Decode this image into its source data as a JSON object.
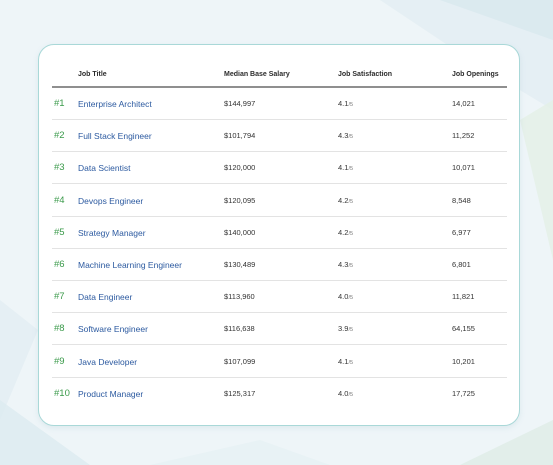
{
  "table": {
    "headers": {
      "job_title": "Job Title",
      "salary": "Median Base Salary",
      "satisfaction": "Job Satisfaction",
      "openings": "Job Openings"
    },
    "rows": [
      {
        "rank": "#1",
        "title": "Enterprise Architect",
        "salary": "$144,997",
        "score": "4.1",
        "scale": "/5",
        "openings": "14,021"
      },
      {
        "rank": "#2",
        "title": "Full Stack Engineer",
        "salary": "$101,794",
        "score": "4.3",
        "scale": "/5",
        "openings": "11,252"
      },
      {
        "rank": "#3",
        "title": "Data Scientist",
        "salary": "$120,000",
        "score": "4.1",
        "scale": "/5",
        "openings": "10,071"
      },
      {
        "rank": "#4",
        "title": "Devops Engineer",
        "salary": "$120,095",
        "score": "4.2",
        "scale": "/5",
        "openings": "8,548"
      },
      {
        "rank": "#5",
        "title": "Strategy Manager",
        "salary": "$140,000",
        "score": "4.2",
        "scale": "/5",
        "openings": "6,977"
      },
      {
        "rank": "#6",
        "title": "Machine Learning Engineer",
        "salary": "$130,489",
        "score": "4.3",
        "scale": "/5",
        "openings": "6,801"
      },
      {
        "rank": "#7",
        "title": "Data Engineer",
        "salary": "$113,960",
        "score": "4.0",
        "scale": "/5",
        "openings": "11,821"
      },
      {
        "rank": "#8",
        "title": "Software Engineer",
        "salary": "$116,638",
        "score": "3.9",
        "scale": "/5",
        "openings": "64,155"
      },
      {
        "rank": "#9",
        "title": "Java Developer",
        "salary": "$107,099",
        "score": "4.1",
        "scale": "/5",
        "openings": "10,201"
      },
      {
        "rank": "#10",
        "title": "Product Manager",
        "salary": "$125,317",
        "score": "4.0",
        "scale": "/5",
        "openings": "17,725"
      }
    ]
  },
  "colors": {
    "rank": "#3a9a4a",
    "title_link": "#2c5aa0",
    "card_border": "#a9d8d8"
  }
}
